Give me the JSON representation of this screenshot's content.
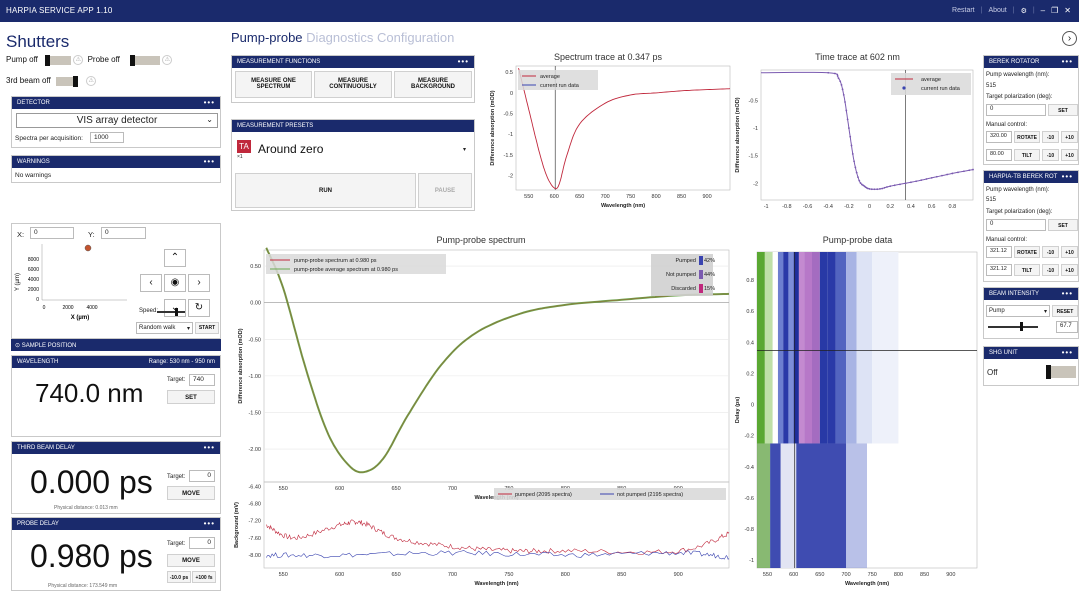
{
  "app": {
    "title": "HARPIA SERVICE APP 1.10",
    "restart": "Restart",
    "about": "About",
    "minimize": "–",
    "restore": "❐",
    "close": "✕"
  },
  "shutters": {
    "title": "Shutters",
    "pump": "Pump off",
    "probe": "Probe off",
    "third": "3rd beam off"
  },
  "detector": {
    "head": "DETECTOR",
    "value": "VIS array detector",
    "spectra_label": "Spectra per acquisition:",
    "spectra_value": "1000"
  },
  "warnings": {
    "head": "WARNINGS",
    "text": "No warnings"
  },
  "sample": {
    "x_label": "X:",
    "x_value": "0",
    "y_label": "Y:",
    "y_value": "0",
    "y_ticks": [
      "8000",
      "6000",
      "4000",
      "2000",
      "0"
    ],
    "x_ticks": [
      "0",
      "2000",
      "4000"
    ],
    "xlabel": "X (µm)",
    "ylabel": "Y (µm)",
    "speed": "Speed:",
    "mode": "Random walk",
    "start": "START",
    "collapse": "SAMPLE POSITION"
  },
  "wavelength": {
    "head": "WAVELENGTH",
    "range": "Range: 530 nm - 950 nm",
    "value": "740.0 nm",
    "target_label": "Target:",
    "target_value": "740",
    "set": "SET"
  },
  "third_delay": {
    "head": "THIRD BEAM DELAY",
    "value": "0.000 ps",
    "target_label": "Target:",
    "target_value": "0",
    "move": "MOVE",
    "physical": "Physical distance:  0.013 mm"
  },
  "probe_delay": {
    "head": "PROBE DELAY",
    "value": "0.980 ps",
    "target_label": "Target:",
    "target_value": "0",
    "move": "MOVE",
    "minus": "-10.0 ps",
    "plus": "+100 fs",
    "physical": "Physical distance:  173.549 mm"
  },
  "tabs": {
    "active": "Pump-probe",
    "t2": "Diagnostics",
    "t3": "Configuration"
  },
  "functions": {
    "head": "MEASUREMENT FUNCTIONS",
    "b1": "MEASURE ONE SPECTRUM",
    "b2": "MEASURE CONTINUOUSLY",
    "b3": "MEASURE BACKGROUND"
  },
  "presets": {
    "head": "MEASUREMENT PRESETS",
    "icon": "TA",
    "icon_sub": "×1",
    "value": "Around zero",
    "run": "RUN",
    "pause": "PAUSE"
  },
  "berek": {
    "head": "BEREK ROTATOR",
    "pw_label": "Pump wavelength (nm):",
    "pw_value": "515",
    "tp_label": "Target polarization (deg):",
    "tp_value": "0",
    "set": "SET",
    "manual": "Manual control:",
    "r1": "320.00",
    "rotate": "ROTATE",
    "m10": "-10",
    "p10": "+10",
    "r2": "80.00",
    "tilt": "TILT"
  },
  "berek2": {
    "head": "HARPIA-TB BEREK ROT",
    "pw_label": "Pump wavelength (nm):",
    "pw_value": "515",
    "tp_label": "Target polarization (deg):",
    "tp_value": "0",
    "set": "SET",
    "manual": "Manual control:",
    "r1": "321.12",
    "rotate": "ROTATE",
    "m10": "-10",
    "p10": "+10",
    "r2": "321.12",
    "tilt": "TILT"
  },
  "beam": {
    "head": "BEAM INTENSITY",
    "mode": "Pump",
    "reset": "RESET",
    "value": "67.7"
  },
  "shg": {
    "head": "SHG UNIT",
    "value": "Off"
  },
  "colors": {
    "navy": "#1a2a6c",
    "red": "#c0283c",
    "blue": "#3a44b0",
    "purple": "#7a5ab0",
    "green": "#6aa84f",
    "olive": "#8a7a3c"
  },
  "chart_data": [
    {
      "type": "line",
      "title": "Spectrum trace at 0.347 ps",
      "xlabel": "Wavelength (nm)",
      "ylabel": "Difference absorption (mOD)",
      "x_ticks": [
        "550",
        "600",
        "650",
        "700",
        "750",
        "800",
        "850",
        "900"
      ],
      "y_ticks": [
        "0.5",
        "0",
        "-0.5",
        "-1",
        "-1.5",
        "-2"
      ],
      "xlim": [
        525,
        945
      ],
      "ylim": [
        -2.35,
        0.65
      ],
      "legend": [
        "average",
        "current run data"
      ],
      "series": [
        {
          "name": "average",
          "x": [
            530,
            550,
            570,
            585,
            600,
            610,
            625,
            650,
            700,
            750,
            800,
            850,
            900,
            945
          ],
          "values": [
            0.6,
            -0.4,
            -1.4,
            -2.0,
            -2.3,
            -2.2,
            -1.5,
            -0.75,
            -0.25,
            -0.05,
            0.0,
            0.05,
            0.08,
            0.1
          ]
        }
      ]
    },
    {
      "type": "line",
      "title": "Time trace at 602 nm",
      "xlabel": "Delay (ps)",
      "ylabel": "Difference absorption (mOD)",
      "x_ticks": [
        "-1",
        "-0.8",
        "-0.6",
        "-0.4",
        "-0.2",
        "0",
        "0.2",
        "0.4",
        "0.6",
        "0.8"
      ],
      "y_ticks": [
        "-0.5",
        "-1",
        "-1.5",
        "-2"
      ],
      "xlim": [
        -1.05,
        1.0
      ],
      "ylim": [
        -2.3,
        0.05
      ],
      "legend": [
        "average",
        "current run data"
      ],
      "series": [
        {
          "name": "average",
          "x": [
            -1.05,
            -0.4,
            -0.3,
            -0.25,
            -0.2,
            -0.15,
            -0.1,
            -0.05,
            0.0,
            0.1,
            0.2,
            0.4,
            0.6,
            0.8,
            1.0
          ],
          "values": [
            0.0,
            0.0,
            -0.1,
            -0.4,
            -1.0,
            -1.6,
            -1.95,
            -2.05,
            -2.1,
            -2.1,
            -2.05,
            -1.98,
            -1.9,
            -1.82,
            -1.75
          ]
        }
      ]
    },
    {
      "type": "line",
      "title": "Pump-probe spectrum",
      "xlabel": "Wavelength (nm)",
      "ylabel": "Difference absorption (mOD)",
      "x_ticks": [
        "550",
        "600",
        "650",
        "700",
        "750",
        "800",
        "850",
        "900"
      ],
      "y_ticks": [
        "0.50",
        "0.00",
        "-0.50",
        "-1.00",
        "-1.50",
        "-2.00"
      ],
      "xlim": [
        533,
        945
      ],
      "ylim": [
        -2.45,
        0.72
      ],
      "legend": [
        "pump-probe spectrum at 0.980 ps",
        "pump-probe average spectrum at 0.980 ps"
      ],
      "stats": [
        {
          "label": "Pumped",
          "value": "42%"
        },
        {
          "label": "Not pumped",
          "value": "44%"
        },
        {
          "label": "Discarded",
          "value": "15%"
        }
      ],
      "series": [
        {
          "name": "pump-probe spectrum at 0.980 ps",
          "x": [
            535,
            550,
            570,
            590,
            610,
            625,
            640,
            660,
            690,
            720,
            760,
            800,
            850,
            900,
            945
          ],
          "values": [
            0.75,
            0.2,
            -0.9,
            -1.8,
            -2.25,
            -2.3,
            -2.1,
            -1.55,
            -0.85,
            -0.42,
            -0.15,
            -0.03,
            0.04,
            0.1,
            0.12
          ]
        }
      ]
    },
    {
      "type": "line",
      "title": "",
      "xlabel": "Wavelength (nm)",
      "ylabel": "Background (mV)",
      "y_ticks": [
        "-6.40",
        "-6.80",
        "-7.20",
        "-7.60",
        "-8.00"
      ],
      "ylim": [
        -8.3,
        -6.3
      ],
      "legend": [
        "pumped (2095 spectra)",
        "not pumped (2195 spectra)"
      ],
      "series": [
        {
          "name": "pumped (2095 spectra)",
          "x": [
            535,
            560,
            600,
            620,
            650,
            700,
            750,
            800,
            900,
            945
          ],
          "values": [
            -7.3,
            -7.6,
            -7.3,
            -7.25,
            -7.6,
            -7.8,
            -7.9,
            -7.9,
            -7.9,
            -7.5
          ]
        },
        {
          "name": "not pumped (2195 spectra)",
          "x": [
            535,
            600,
            700,
            800,
            900,
            945
          ],
          "values": [
            -8.0,
            -8.0,
            -7.95,
            -8.0,
            -7.95,
            -8.05
          ]
        }
      ]
    },
    {
      "type": "heatmap",
      "title": "Pump-probe data",
      "xlabel": "Wavelength (nm)",
      "ylabel": "Delay (ps)",
      "x_ticks": [
        "550",
        "600",
        "650",
        "700",
        "750",
        "800",
        "850",
        "900"
      ],
      "y_ticks": [
        "0.8",
        "0.6",
        "0.4",
        "0.2",
        "0",
        "-0.2",
        "-0.4",
        "-0.6",
        "-0.8",
        "-1"
      ],
      "xlim": [
        530,
        950
      ],
      "ylim": [
        -1.05,
        0.98
      ]
    }
  ]
}
